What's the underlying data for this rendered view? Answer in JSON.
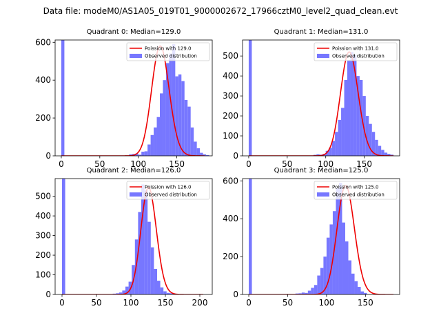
{
  "suptitle": "Data file: modeM0/AS1A05_019T01_9000002672_17966cztM0_level2_quad_clean.evt",
  "colors": {
    "hist": "#7777ff",
    "fit": "#ee0000",
    "axis": "#000000"
  },
  "chart_data": [
    {
      "type": "bar",
      "title": "Quadrant 0: Median=129.0",
      "xlim": [
        -8,
        196
      ],
      "ylim": [
        0,
        612
      ],
      "xticks": [
        0,
        50,
        100,
        150
      ],
      "yticks": [
        0,
        200,
        400,
        600
      ],
      "legend": {
        "position": "top-right",
        "fit_label": "Poission with 129.0",
        "hist_label": "Observed distribution"
      },
      "bins": {
        "start": 0,
        "width": 4,
        "counts": [
          640,
          0,
          0,
          0,
          0,
          0,
          0,
          0,
          0,
          0,
          0,
          0,
          0,
          0,
          0,
          0,
          0,
          0,
          0,
          0,
          0,
          0,
          8,
          10,
          12,
          6,
          22,
          24,
          60,
          110,
          150,
          205,
          330,
          400,
          490,
          540,
          590,
          420,
          430,
          395,
          295,
          260,
          150,
          75,
          40,
          16,
          8,
          4
        ]
      },
      "fit": {
        "lambda": 129,
        "amplitude": 580,
        "x_range": [
          0,
          186
        ]
      }
    },
    {
      "type": "bar",
      "title": "Quadrant 1: Median=131.0",
      "xlim": [
        -8,
        196
      ],
      "ylim": [
        0,
        580
      ],
      "xticks": [
        0,
        50,
        100,
        150
      ],
      "yticks": [
        0,
        100,
        200,
        300,
        400,
        500
      ],
      "legend": {
        "position": "top-right",
        "fit_label": "Poission with 131.0",
        "hist_label": "Observed distribution"
      },
      "bins": {
        "start": 0,
        "width": 4,
        "counts": [
          640,
          0,
          0,
          0,
          0,
          0,
          0,
          0,
          0,
          0,
          0,
          0,
          0,
          0,
          0,
          0,
          0,
          0,
          0,
          0,
          0,
          5,
          8,
          6,
          10,
          25,
          40,
          75,
          120,
          180,
          240,
          380,
          480,
          520,
          505,
          400,
          380,
          300,
          200,
          160,
          120,
          80,
          50,
          30,
          16,
          10,
          6
        ]
      },
      "fit": {
        "lambda": 131,
        "amplitude": 520,
        "x_range": [
          0,
          188
        ]
      }
    },
    {
      "type": "bar",
      "title": "Quadrant 2: Median=126.0",
      "xlim": [
        -10,
        218
      ],
      "ylim": [
        0,
        590
      ],
      "xticks": [
        0,
        50,
        100,
        150,
        200
      ],
      "yticks": [
        0,
        100,
        200,
        300,
        400,
        500
      ],
      "legend": {
        "position": "top-right",
        "fit_label": "Poission with 126.0",
        "hist_label": "Observed distribution"
      },
      "bins": {
        "start": 0,
        "width": 4.6,
        "counts": [
          640,
          0,
          0,
          0,
          0,
          0,
          0,
          0,
          0,
          0,
          0,
          0,
          0,
          0,
          0,
          0,
          4,
          6,
          10,
          20,
          40,
          65,
          150,
          280,
          420,
          560,
          530,
          370,
          240,
          130,
          70,
          36,
          16,
          8,
          6,
          4,
          2
        ]
      },
      "fit": {
        "lambda": 126,
        "amplitude": 545,
        "x_range": [
          0,
          205
        ]
      }
    },
    {
      "type": "bar",
      "title": "Quadrant 3: Median=125.0",
      "xlim": [
        -8,
        194
      ],
      "ylim": [
        0,
        612
      ],
      "xticks": [
        0,
        50,
        100,
        150
      ],
      "yticks": [
        0,
        200,
        400,
        600
      ],
      "legend": {
        "position": "top-right",
        "fit_label": "Poission with 125.0",
        "hist_label": "Observed distribution"
      },
      "bins": {
        "start": 0,
        "width": 4,
        "counts": [
          640,
          0,
          0,
          0,
          0,
          0,
          0,
          0,
          0,
          0,
          0,
          0,
          0,
          0,
          0,
          5,
          6,
          10,
          8,
          20,
          35,
          50,
          100,
          140,
          200,
          300,
          370,
          440,
          560,
          590,
          380,
          280,
          180,
          110,
          70,
          40,
          16,
          8
        ]
      },
      "fit": {
        "lambda": 125,
        "amplitude": 575,
        "x_range": [
          0,
          186
        ]
      }
    }
  ]
}
